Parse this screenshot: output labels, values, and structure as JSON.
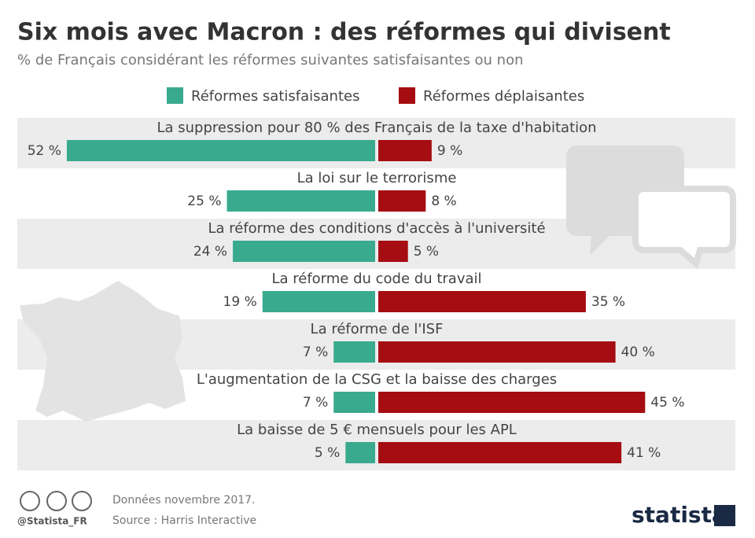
{
  "chart_data": {
    "type": "diverging-bar",
    "title": "Six mois avec Macron : des réformes qui divisent",
    "subtitle": "% de Français considérant les réformes suivantes satisfaisantes ou non",
    "categories": [
      "La suppression pour 80 % des Français de la taxe d'habitation",
      "La loi sur le terrorisme",
      "La réforme des conditions d'accès à l'université",
      "La réforme du code du travail",
      "La réforme de l'ISF",
      "L'augmentation de la CSG et la baisse des charges",
      "La baisse de 5 € mensuels pour les APL"
    ],
    "series": [
      {
        "name": "Réformes satisfaisantes",
        "color": "#3aaa8f",
        "values": [
          52,
          25,
          24,
          19,
          7,
          7,
          5
        ],
        "value_labels": [
          "52 %",
          "25 %",
          "24 %",
          "19 %",
          "7 %",
          "7 %",
          "5 %"
        ]
      },
      {
        "name": "Réformes déplaisantes",
        "color": "#a50d12",
        "values": [
          9,
          8,
          5,
          35,
          40,
          45,
          41
        ],
        "value_labels": [
          "9 %",
          "8 %",
          "5 %",
          "35 %",
          "40 %",
          "45 %",
          "41 %"
        ]
      }
    ]
  },
  "footer": {
    "handle": "@Statista_FR",
    "note": "Données novembre 2017.",
    "source": "Source : Harris Interactive",
    "logo": "statista"
  }
}
